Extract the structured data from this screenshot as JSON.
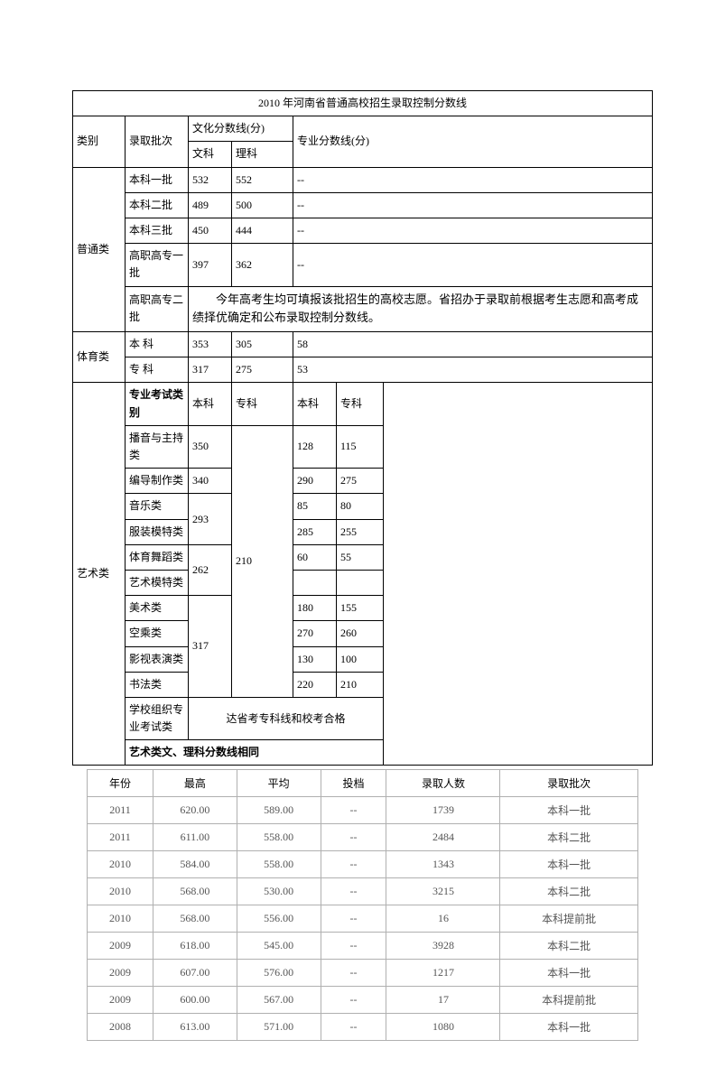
{
  "table1": {
    "title": "2010 年河南省普通高校招生录取控制分数线",
    "header": {
      "category": "类别",
      "batch": "录取批次",
      "culture_score": "文化分数线(分)",
      "arts": "文科",
      "science": "理科",
      "pro_score": "专业分数线(分)"
    },
    "general": {
      "label": "普通类",
      "rows": [
        {
          "batch": "本科一批",
          "arts": "532",
          "sci": "552",
          "pro": "--"
        },
        {
          "batch": "本科二批",
          "arts": "489",
          "sci": "500",
          "pro": "--"
        },
        {
          "batch": "本科三批",
          "arts": "450",
          "sci": "444",
          "pro": "--"
        },
        {
          "batch": "高职高专一批",
          "arts": "397",
          "sci": "362",
          "pro": "--"
        }
      ],
      "note_batch": "高职高专二批",
      "note_text": "今年高考生均可填报该批招生的高校志愿。省招办于录取前根据考生志愿和高考成绩择优确定和公布录取控制分数线。"
    },
    "sports": {
      "label": "体育类",
      "rows": [
        {
          "batch": "本 科",
          "arts": "353",
          "sci": "305",
          "pro": "58"
        },
        {
          "batch": "专 科",
          "arts": "317",
          "sci": "275",
          "pro": "53"
        }
      ]
    },
    "art": {
      "label": "艺术类",
      "exam_type_label": "专业考试类别",
      "sub_header": {
        "c1": "本科",
        "c2": "专科",
        "c3": "本科",
        "c4": "专科"
      },
      "rows": [
        {
          "batch": "播音与主持类",
          "arts": "350",
          "sci": "",
          "p1": "128",
          "p2": "115"
        },
        {
          "batch": "编导制作类",
          "arts": "340",
          "sci": "",
          "p1": "290",
          "p2": "275"
        },
        {
          "batch": "音乐类",
          "arts": "293",
          "sci": "",
          "p1": "85",
          "p2": "80"
        },
        {
          "batch": "服装模特类",
          "arts": "",
          "sci": "",
          "p1": "285",
          "p2": "255"
        },
        {
          "batch": "体育舞蹈类",
          "arts": "262",
          "sci": "210",
          "p1": "60",
          "p2": "55"
        },
        {
          "batch": "艺术模特类",
          "arts": "",
          "sci": "",
          "p1": "",
          "p2": ""
        },
        {
          "batch": "美术类",
          "arts": "",
          "sci": "",
          "p1": "180",
          "p2": "155"
        },
        {
          "batch": "空乘类",
          "arts": "317",
          "sci": "",
          "p1": "270",
          "p2": "260"
        },
        {
          "batch": "影视表演类",
          "arts": "",
          "sci": "",
          "p1": "130",
          "p2": "100"
        },
        {
          "batch": "书法类",
          "arts": "",
          "sci": "",
          "p1": "220",
          "p2": "210"
        }
      ],
      "school_row": {
        "batch": "学校组织专业考试类",
        "note": "达省考专科线和校考合格"
      },
      "footer": "艺术类文、理科分数线相同"
    }
  },
  "table2": {
    "columns": [
      "年份",
      "最高",
      "平均",
      "投档",
      "录取人数",
      "录取批次"
    ],
    "rows": [
      [
        "2011",
        "620.00",
        "589.00",
        "--",
        "1739",
        "本科一批"
      ],
      [
        "2011",
        "611.00",
        "558.00",
        "--",
        "2484",
        "本科二批"
      ],
      [
        "2010",
        "584.00",
        "558.00",
        "--",
        "1343",
        "本科一批"
      ],
      [
        "2010",
        "568.00",
        "530.00",
        "--",
        "3215",
        "本科二批"
      ],
      [
        "2010",
        "568.00",
        "556.00",
        "--",
        "16",
        "本科提前批"
      ],
      [
        "2009",
        "618.00",
        "545.00",
        "--",
        "3928",
        "本科二批"
      ],
      [
        "2009",
        "607.00",
        "576.00",
        "--",
        "1217",
        "本科一批"
      ],
      [
        "2009",
        "600.00",
        "567.00",
        "--",
        "17",
        "本科提前批"
      ],
      [
        "2008",
        "613.00",
        "571.00",
        "--",
        "1080",
        "本科一批"
      ]
    ]
  }
}
